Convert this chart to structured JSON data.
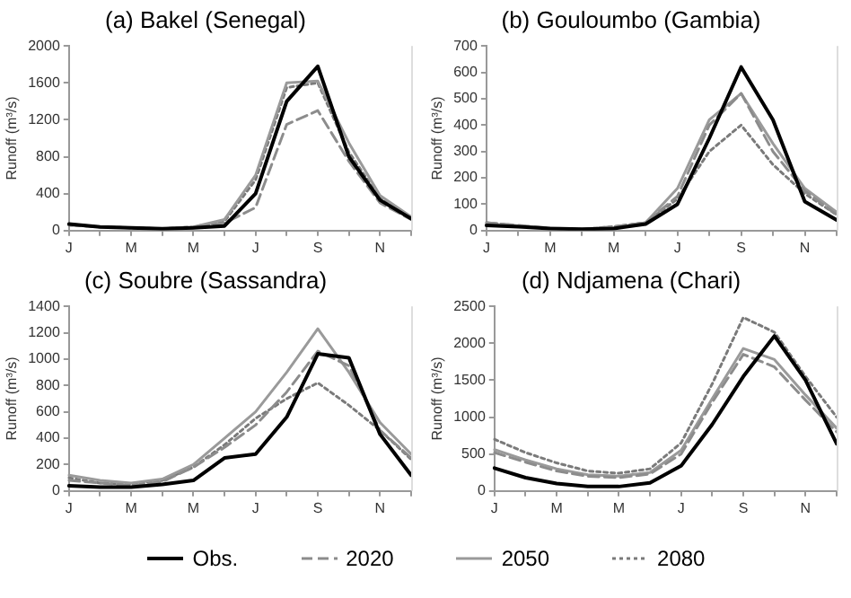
{
  "chart_data": [
    {
      "type": "line",
      "title": "(a) Bakel (Senegal)",
      "ylabel": "Runoff (m³/s)",
      "categories": [
        "J",
        null,
        "M",
        null,
        "M",
        null,
        "J",
        null,
        "S",
        null,
        "N",
        null
      ],
      "ylim": [
        0,
        2000
      ],
      "yticks": [
        0,
        400,
        800,
        1200,
        1600,
        2000
      ],
      "grid": false,
      "marker": "none",
      "series": [
        {
          "color": "#000000",
          "line_style": "solid",
          "values": [
            70,
            40,
            30,
            20,
            30,
            50,
            400,
            1400,
            1780,
            800,
            330,
            130
          ]
        },
        {
          "color": "#8c8c8c",
          "line_style": "dashed",
          "values": [
            60,
            40,
            30,
            20,
            30,
            80,
            250,
            1150,
            1300,
            750,
            300,
            120
          ]
        },
        {
          "color": "#9a9a9a",
          "line_style": "solid",
          "values": [
            70,
            40,
            30,
            20,
            40,
            120,
            600,
            1600,
            1620,
            950,
            380,
            150
          ]
        },
        {
          "color": "#7a7a7a",
          "line_style": "dotted",
          "values": [
            60,
            40,
            30,
            20,
            40,
            100,
            550,
            1550,
            1600,
            850,
            350,
            140
          ]
        }
      ]
    },
    {
      "type": "line",
      "title": "(b) Gouloumbo (Gambia)",
      "ylabel": "Runoff (m³/s)",
      "categories": [
        "J",
        null,
        "M",
        null,
        "M",
        null,
        "J",
        null,
        "S",
        null,
        "N",
        null
      ],
      "ylim": [
        0,
        700
      ],
      "yticks": [
        0,
        100,
        200,
        300,
        400,
        500,
        600,
        700
      ],
      "grid": false,
      "marker": "none",
      "series": [
        {
          "color": "#000000",
          "line_style": "solid",
          "values": [
            20,
            15,
            8,
            5,
            8,
            25,
            100,
            350,
            620,
            420,
            110,
            40
          ]
        },
        {
          "color": "#8c8c8c",
          "line_style": "dashed",
          "values": [
            30,
            20,
            10,
            5,
            15,
            30,
            130,
            400,
            520,
            300,
            150,
            60
          ]
        },
        {
          "color": "#9a9a9a",
          "line_style": "solid",
          "values": [
            25,
            18,
            8,
            5,
            10,
            30,
            160,
            420,
            520,
            330,
            160,
            70
          ]
        },
        {
          "color": "#7a7a7a",
          "line_style": "dotted",
          "values": [
            30,
            18,
            8,
            5,
            15,
            30,
            120,
            300,
            400,
            250,
            140,
            60
          ]
        }
      ]
    },
    {
      "type": "line",
      "title": "(c) Soubre (Sassandra)",
      "ylabel": "Runoff (m³/s)",
      "categories": [
        "J",
        null,
        "M",
        null,
        "M",
        null,
        "J",
        null,
        "S",
        null,
        "N",
        null
      ],
      "ylim": [
        0,
        1400
      ],
      "yticks": [
        0,
        200,
        400,
        600,
        800,
        1000,
        1200,
        1400
      ],
      "grid": false,
      "marker": "none",
      "series": [
        {
          "color": "#000000",
          "line_style": "solid",
          "values": [
            40,
            30,
            30,
            50,
            80,
            250,
            280,
            560,
            1040,
            1010,
            430,
            120
          ]
        },
        {
          "color": "#8c8c8c",
          "line_style": "dashed",
          "values": [
            80,
            60,
            40,
            70,
            180,
            330,
            500,
            750,
            1060,
            950,
            460,
            250
          ]
        },
        {
          "color": "#9a9a9a",
          "line_style": "solid",
          "values": [
            120,
            80,
            60,
            90,
            200,
            400,
            600,
            900,
            1230,
            900,
            520,
            280
          ]
        },
        {
          "color": "#7a7a7a",
          "line_style": "dotted",
          "values": [
            100,
            60,
            50,
            80,
            180,
            350,
            550,
            700,
            820,
            650,
            460,
            240
          ]
        }
      ]
    },
    {
      "type": "line",
      "title": "(d) Ndjamena (Chari)",
      "ylabel": "Runoff (m³/s)",
      "categories": [
        "J",
        null,
        "M",
        null,
        "M",
        null,
        "J",
        null,
        "S",
        null,
        "N",
        null
      ],
      "ylim": [
        0,
        2500
      ],
      "yticks": [
        0,
        500,
        1000,
        1500,
        2000,
        2500
      ],
      "grid": false,
      "legend": "bottom",
      "marker": "none",
      "series": [
        {
          "name": "Obs.",
          "color": "#000000",
          "line_style": "solid",
          "values": [
            310,
            180,
            100,
            60,
            60,
            110,
            340,
            900,
            1550,
            2100,
            1500,
            640
          ]
        },
        {
          "name": "2020",
          "color": "#8c8c8c",
          "line_style": "dashed",
          "values": [
            520,
            390,
            270,
            200,
            180,
            230,
            500,
            1200,
            1850,
            1680,
            1230,
            800
          ]
        },
        {
          "name": "2050",
          "color": "#9a9a9a",
          "line_style": "solid",
          "values": [
            560,
            420,
            300,
            220,
            200,
            250,
            550,
            1250,
            1930,
            1780,
            1300,
            850
          ]
        },
        {
          "name": "2080",
          "color": "#7a7a7a",
          "line_style": "dotted",
          "values": [
            700,
            520,
            380,
            270,
            240,
            300,
            650,
            1450,
            2350,
            2150,
            1550,
            1000
          ]
        }
      ]
    }
  ]
}
